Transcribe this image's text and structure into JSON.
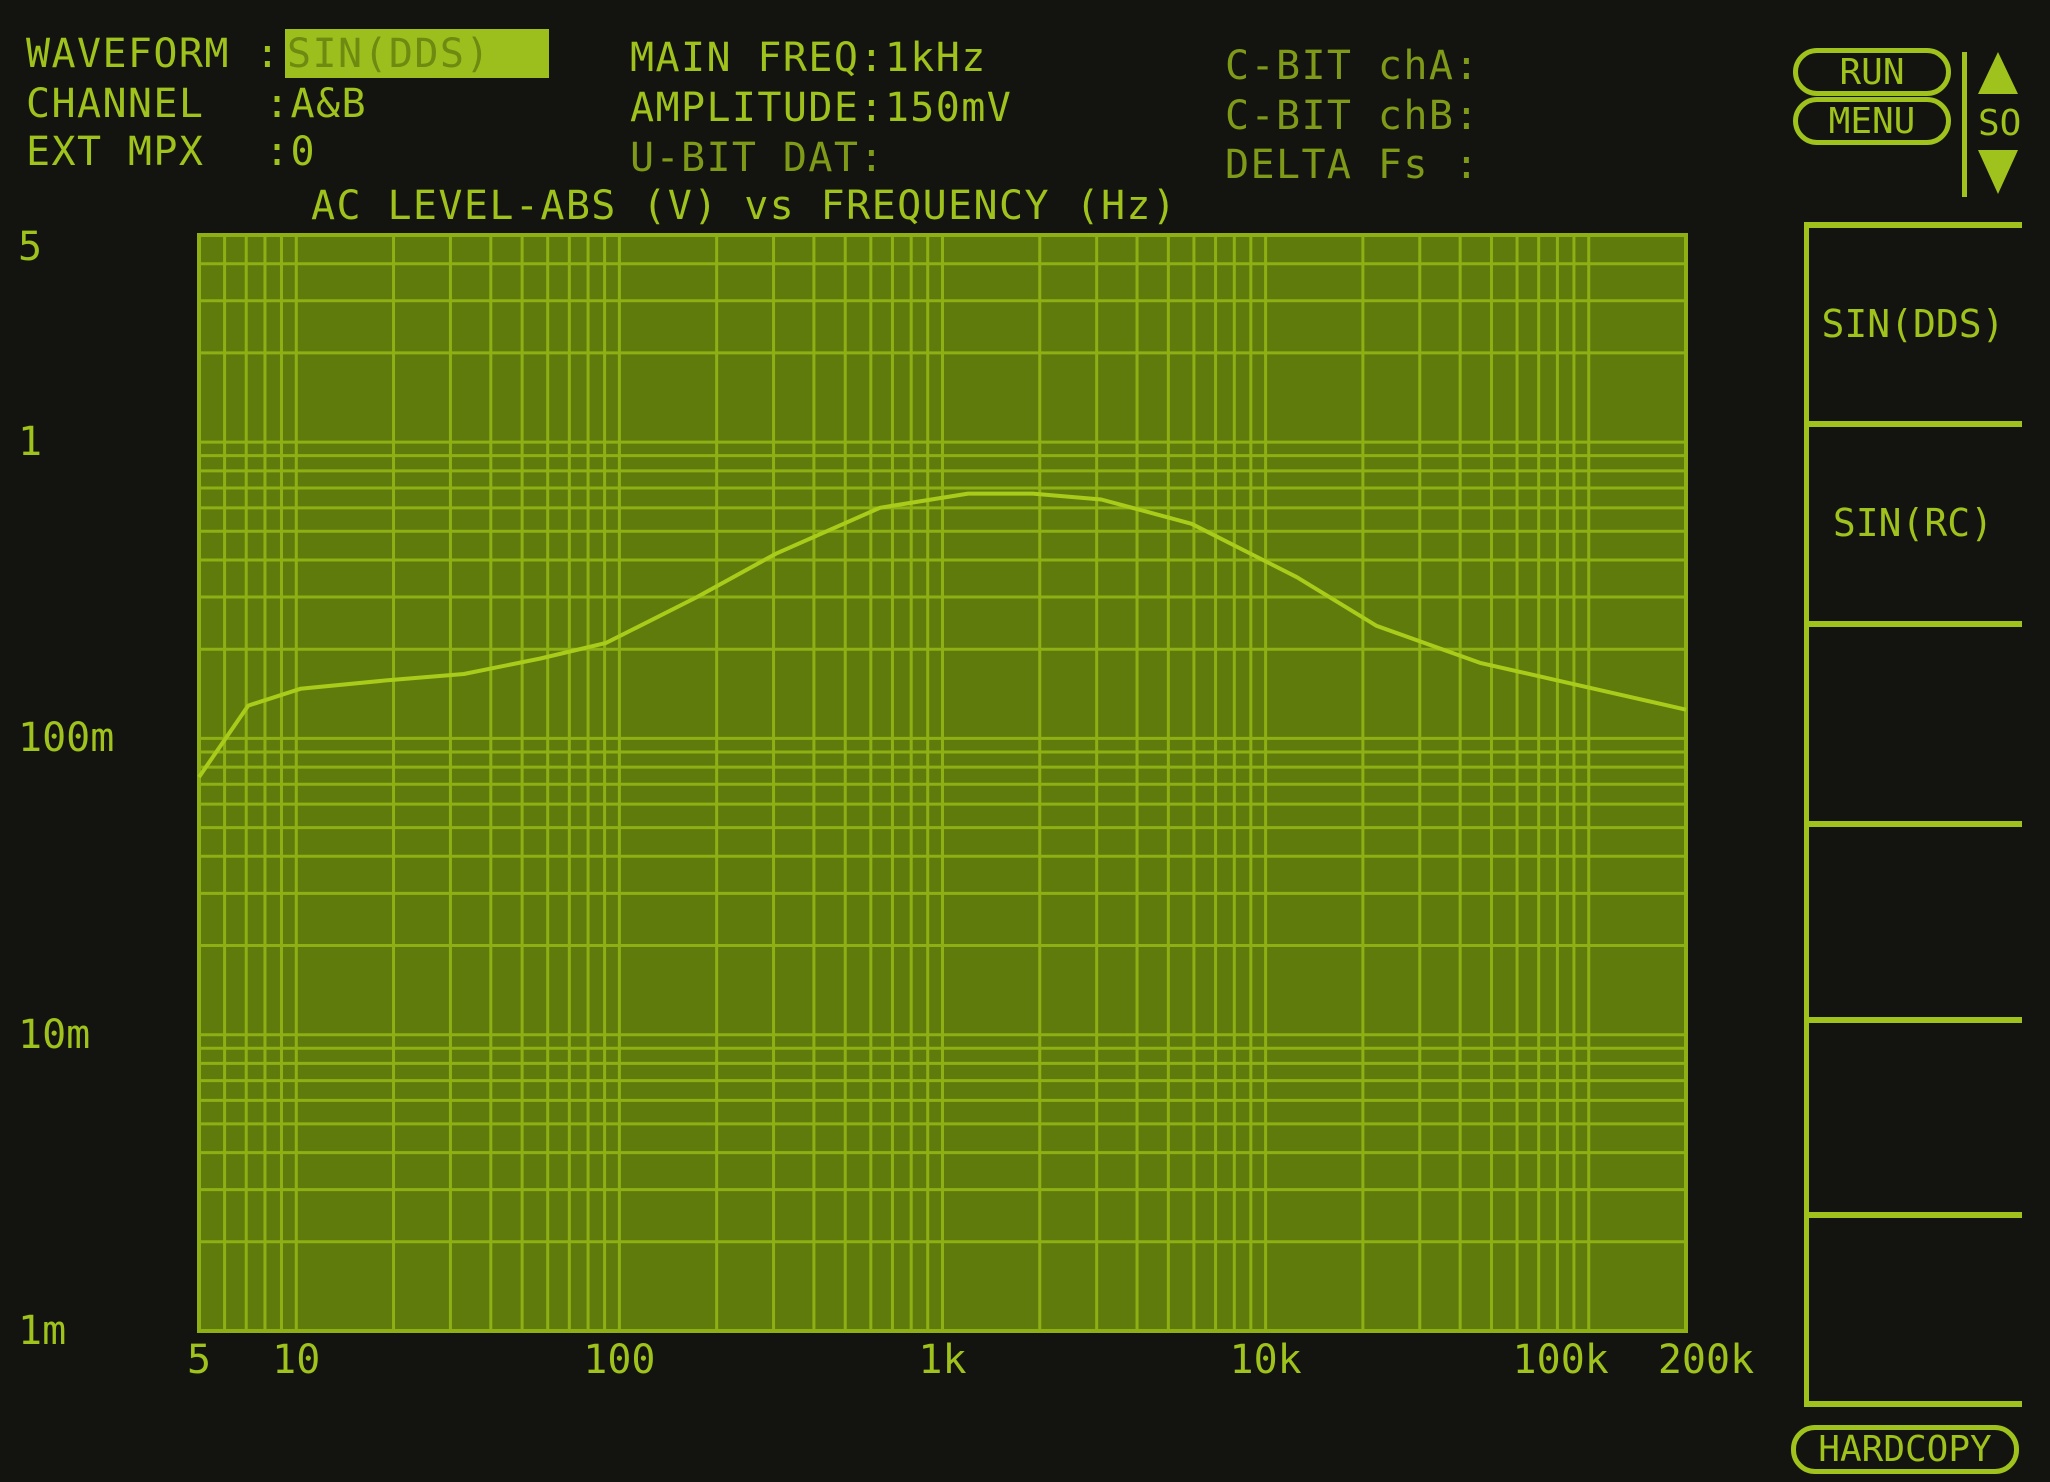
{
  "header": {
    "waveform_label": "WAVEFORM :",
    "waveform_value": "SIN(DDS)",
    "channel_label": "CHANNEL",
    "channel_value": ":A&B",
    "ext_mpx_label": "EXT MPX",
    "ext_mpx_value": ":0",
    "main_freq": "MAIN FREQ:1kHz",
    "amplitude": "AMPLITUDE:150mV",
    "u_bit": "U-BIT DAT:",
    "c_bit_a": "C-BIT chA:",
    "c_bit_b": "C-BIT chB:",
    "delta_fs": "DELTA Fs :"
  },
  "controls": {
    "run": "RUN",
    "menu": "MENU",
    "scroll_label": "SO",
    "hardcopy": "HARDCOPY"
  },
  "softkeys": [
    "SIN(DDS)",
    "SIN(RC)",
    "",
    "",
    "",
    ""
  ],
  "colors": {
    "background": "#13140f",
    "plot_bg": "#5f7b0c",
    "grid": "#8fb014",
    "trace": "#a9cb1a",
    "text": "#9fc21c"
  },
  "chart_data": {
    "type": "line",
    "title": "AC LEVEL-ABS (V) vs FREQUENCY (Hz)",
    "x_scale": "log",
    "y_scale": "log",
    "xlim": [
      5,
      200000
    ],
    "ylim": [
      0.001,
      5
    ],
    "grid": true,
    "x_ticks": [
      {
        "value": 5,
        "label": "5"
      },
      {
        "value": 10,
        "label": "10"
      },
      {
        "value": 100,
        "label": "100"
      },
      {
        "value": 1000,
        "label": "1k"
      },
      {
        "value": 10000,
        "label": "10k"
      },
      {
        "value": 100000,
        "label": "100k"
      },
      {
        "value": 200000,
        "label": "200k"
      }
    ],
    "y_ticks": [
      {
        "value": 5,
        "label": "5"
      },
      {
        "value": 1,
        "label": "1"
      },
      {
        "value": 0.1,
        "label": "100m"
      },
      {
        "value": 0.01,
        "label": "10m"
      },
      {
        "value": 0.001,
        "label": "1m"
      }
    ],
    "series": [
      {
        "x": [
          5,
          7.1,
          10.3,
          19,
          33,
          57,
          91,
          174,
          305,
          640,
          1200,
          1900,
          3100,
          5900,
          12500,
          22000,
          46000,
          80000,
          200000
        ],
        "y": [
          0.074,
          0.129,
          0.147,
          0.157,
          0.165,
          0.186,
          0.21,
          0.3,
          0.42,
          0.6,
          0.67,
          0.67,
          0.64,
          0.53,
          0.35,
          0.24,
          0.18,
          0.157,
          0.125
        ]
      }
    ]
  }
}
